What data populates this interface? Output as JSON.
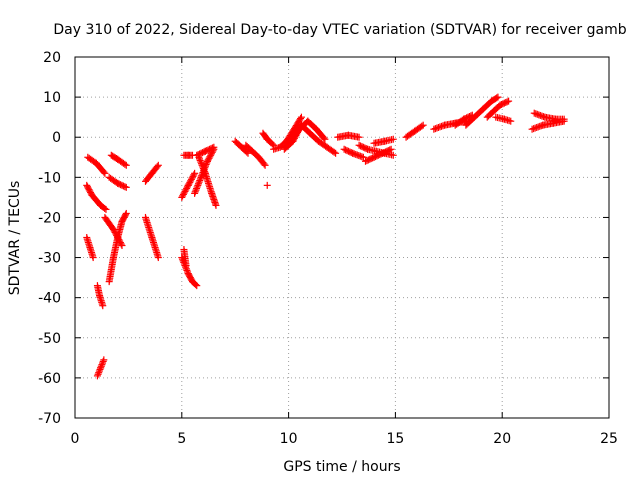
{
  "chart_data": {
    "type": "scatter",
    "title": "Day 310 of 2022, Sidereal Day-to-day VTEC variation (SDTVAR) for receiver gamb",
    "xlabel": "GPS time / hours",
    "ylabel": "SDTVAR / TECUs",
    "xlim": [
      0,
      25
    ],
    "ylim": [
      -70,
      20
    ],
    "xticks": [
      0,
      5,
      10,
      15,
      20,
      25
    ],
    "yticks": [
      -70,
      -60,
      -50,
      -40,
      -30,
      -20,
      -10,
      0,
      10,
      20
    ],
    "xtick_labels": [
      "0",
      "5",
      "10",
      "15",
      "20",
      "25"
    ],
    "ytick_labels": [
      "-70",
      "-60",
      "-50",
      "-40",
      "-30",
      "-20",
      "-10",
      "0",
      "10",
      "20"
    ],
    "grid": true,
    "marker": "+",
    "color": "#ff0000",
    "segments": [
      {
        "x": [
          0.6,
          1.0,
          1.4
        ],
        "y": [
          -5,
          -6.5,
          -9
        ]
      },
      {
        "x": [
          0.55,
          0.8,
          1.2,
          1.45
        ],
        "y": [
          -12,
          -14.5,
          -17,
          -18
        ]
      },
      {
        "x": [
          0.55,
          0.7,
          0.85
        ],
        "y": [
          -25,
          -27.5,
          -30
        ]
      },
      {
        "x": [
          1.05,
          1.15,
          1.3
        ],
        "y": [
          -37,
          -39.5,
          -42
        ]
      },
      {
        "x": [
          1.05,
          1.2,
          1.35
        ],
        "y": [
          -59.5,
          -57.5,
          -55.5
        ]
      },
      {
        "x": [
          1.4,
          1.8,
          2.2
        ],
        "y": [
          -20,
          -23,
          -27
        ]
      },
      {
        "x": [
          1.6,
          1.8,
          2.0,
          2.2,
          2.4
        ],
        "y": [
          -36,
          -30,
          -25,
          -21,
          -19
        ]
      },
      {
        "x": [
          1.6,
          2.0,
          2.4
        ],
        "y": [
          -10,
          -11.5,
          -12.5
        ]
      },
      {
        "x": [
          1.7,
          2.0,
          2.4
        ],
        "y": [
          -4.5,
          -5.5,
          -7
        ]
      },
      {
        "x": [
          3.3,
          3.6,
          3.9
        ],
        "y": [
          -11,
          -9,
          -7
        ]
      },
      {
        "x": [
          3.3,
          3.6,
          3.9
        ],
        "y": [
          -20,
          -25,
          -30
        ]
      },
      {
        "x": [
          5.0,
          5.3,
          5.5,
          5.7
        ],
        "y": [
          -30,
          -34,
          -36,
          -37
        ]
      },
      {
        "x": [
          5.1,
          5.2
        ],
        "y": [
          -28,
          -32
        ]
      },
      {
        "x": [
          5.0,
          5.3,
          5.6
        ],
        "y": [
          -15,
          -12,
          -9
        ]
      },
      {
        "x": [
          5.1,
          5.3,
          5.5
        ],
        "y": [
          -4.5,
          -4.5,
          -4.5
        ]
      },
      {
        "x": [
          5.6,
          5.9,
          6.2,
          6.5
        ],
        "y": [
          -14,
          -10,
          -6,
          -3
        ]
      },
      {
        "x": [
          5.8,
          6.1,
          6.4,
          6.6
        ],
        "y": [
          -5,
          -9,
          -14,
          -17
        ]
      },
      {
        "x": [
          5.7,
          6.1,
          6.5
        ],
        "y": [
          -4.5,
          -3.5,
          -2.5
        ]
      },
      {
        "x": [
          7.5,
          7.8,
          8.1
        ],
        "y": [
          -1,
          -2.5,
          -4
        ]
      },
      {
        "x": [
          8.0,
          8.3,
          8.6,
          8.9
        ],
        "y": [
          -2,
          -3.5,
          -5,
          -7
        ]
      },
      {
        "x": [
          8.8,
          9.0,
          9.3
        ],
        "y": [
          1,
          -0.5,
          -2
        ]
      },
      {
        "x": [
          9.0
        ],
        "y": [
          -12
        ]
      },
      {
        "x": [
          9.3,
          9.6,
          9.9,
          10.2,
          10.6
        ],
        "y": [
          -3,
          -2.5,
          -1,
          1.5,
          5
        ]
      },
      {
        "x": [
          9.8,
          10.2,
          10.6,
          11.0,
          11.4,
          11.8,
          12.2
        ],
        "y": [
          -3,
          -1,
          3,
          1,
          -1,
          -2.5,
          -4
        ]
      },
      {
        "x": [
          10.1,
          10.5,
          10.9,
          11.3,
          11.7
        ],
        "y": [
          -1,
          2,
          4,
          2,
          -0.5
        ]
      },
      {
        "x": [
          12.3,
          12.8,
          13.3
        ],
        "y": [
          0,
          0.5,
          0
        ]
      },
      {
        "x": [
          12.6,
          13.0,
          13.5
        ],
        "y": [
          -3,
          -4,
          -5
        ]
      },
      {
        "x": [
          13.3,
          13.7,
          14.1,
          14.5,
          14.9
        ],
        "y": [
          -2,
          -3,
          -3.5,
          -4,
          -4.5
        ]
      },
      {
        "x": [
          13.6,
          14.0,
          14.4,
          14.8
        ],
        "y": [
          -6,
          -5,
          -4,
          -3
        ]
      },
      {
        "x": [
          14.0,
          14.5,
          14.9
        ],
        "y": [
          -1.5,
          -1,
          -0.5
        ]
      },
      {
        "x": [
          15.5,
          15.9,
          16.3
        ],
        "y": [
          0,
          1.5,
          3
        ]
      },
      {
        "x": [
          16.8,
          17.3,
          17.8,
          18.3
        ],
        "y": [
          2,
          3,
          3.5,
          4
        ]
      },
      {
        "x": [
          17.8,
          18.2,
          18.6
        ],
        "y": [
          3,
          4.5,
          5.5
        ]
      },
      {
        "x": [
          18.3,
          18.7,
          19.1,
          19.5,
          19.8
        ],
        "y": [
          3,
          5,
          7,
          9,
          10
        ]
      },
      {
        "x": [
          19.3,
          19.6,
          19.9,
          20.3
        ],
        "y": [
          5,
          6.5,
          8,
          9
        ]
      },
      {
        "x": [
          19.7,
          20.1,
          20.4
        ],
        "y": [
          5,
          4.5,
          4
        ]
      },
      {
        "x": [
          21.4,
          21.9,
          22.4,
          22.9
        ],
        "y": [
          2,
          3,
          3.5,
          4
        ]
      },
      {
        "x": [
          21.5,
          22.0,
          22.5,
          22.9
        ],
        "y": [
          6,
          5,
          4.5,
          4.5
        ]
      }
    ]
  }
}
